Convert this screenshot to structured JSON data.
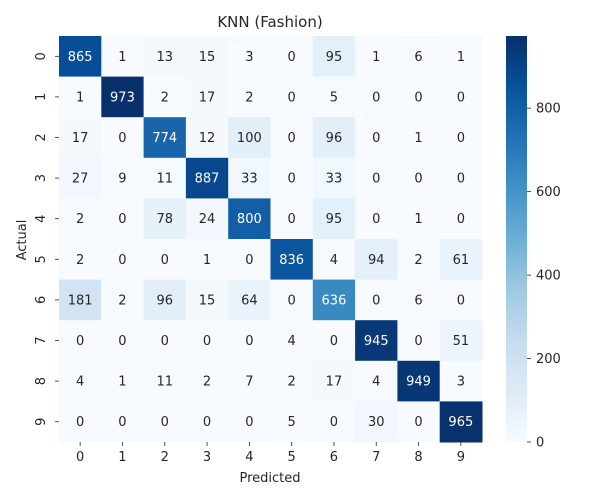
{
  "chart_data": {
    "type": "heatmap",
    "title": "KNN (Fashion)",
    "xlabel": "Predicted",
    "ylabel": "Actual",
    "x_categories": [
      "0",
      "1",
      "2",
      "3",
      "4",
      "5",
      "6",
      "7",
      "8",
      "9"
    ],
    "y_categories": [
      "0",
      "1",
      "2",
      "3",
      "4",
      "5",
      "6",
      "7",
      "8",
      "9"
    ],
    "values": [
      [
        865,
        1,
        13,
        15,
        3,
        0,
        95,
        1,
        6,
        1
      ],
      [
        1,
        973,
        2,
        17,
        2,
        0,
        5,
        0,
        0,
        0
      ],
      [
        17,
        0,
        774,
        12,
        100,
        0,
        96,
        0,
        1,
        0
      ],
      [
        27,
        9,
        11,
        887,
        33,
        0,
        33,
        0,
        0,
        0
      ],
      [
        2,
        0,
        78,
        24,
        800,
        0,
        95,
        0,
        1,
        0
      ],
      [
        2,
        0,
        0,
        1,
        0,
        836,
        4,
        94,
        2,
        61
      ],
      [
        181,
        2,
        96,
        15,
        64,
        0,
        636,
        0,
        6,
        0
      ],
      [
        0,
        0,
        0,
        0,
        0,
        4,
        0,
        945,
        0,
        51
      ],
      [
        4,
        1,
        11,
        2,
        7,
        2,
        17,
        4,
        949,
        3
      ],
      [
        0,
        0,
        0,
        0,
        0,
        5,
        0,
        30,
        0,
        965
      ]
    ],
    "colormap": "Blues",
    "colorbar": {
      "min": 0,
      "max": 973,
      "ticks": [
        0,
        200,
        400,
        600,
        800
      ]
    },
    "annotations": true
  }
}
